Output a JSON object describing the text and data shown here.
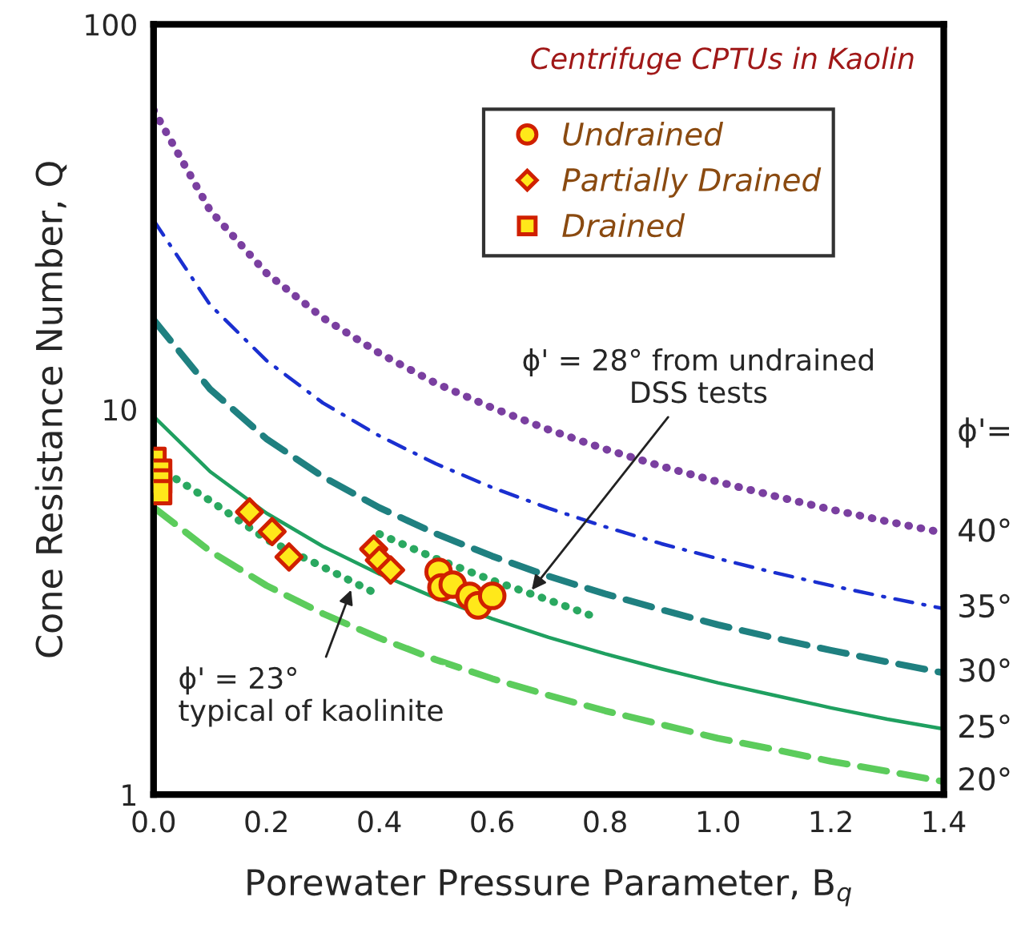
{
  "chart_data": {
    "type": "scatter",
    "xlabel": "Porewater Pressure Parameter, B$_{q}$",
    "ylabel": "Cone Resistance Number, Q",
    "legend_title": "Centrifuge CPTUs in Kaolin",
    "log": "y",
    "xlim": [
      0,
      1.4
    ],
    "ylim": [
      1,
      100
    ],
    "xticks": [
      {
        "value": 0,
        "label": "0.0"
      },
      {
        "value": 0.2,
        "label": "0.2"
      },
      {
        "value": 0.4,
        "label": "0.4"
      },
      {
        "value": 0.6,
        "label": "0.6"
      },
      {
        "value": 0.8,
        "label": "0.8"
      },
      {
        "value": 1.0,
        "label": "1.0"
      },
      {
        "value": 1.2,
        "label": "1.2"
      },
      {
        "value": 1.4,
        "label": "1.4"
      }
    ],
    "yticks": [
      1,
      10,
      100
    ],
    "grid": false,
    "legend": "top right",
    "series": [
      {
        "type": "line",
        "line_style": "dotted",
        "color": "#7a3fa0",
        "x": [
          0,
          0.1,
          0.2,
          0.3,
          0.4,
          0.5,
          0.6,
          0.7,
          0.8,
          0.9,
          1.0,
          1.1,
          1.2,
          1.3,
          1.4
        ],
        "values": [
          60,
          32.9,
          22.6,
          17.3,
          14.0,
          11.7,
          10.1,
          8.86,
          7.89,
          7.12,
          6.49,
          5.96,
          5.5,
          5.12,
          4.78
        ]
      },
      {
        "type": "line",
        "line_style": "dashdot",
        "color": "#1a2fd0",
        "x": [
          0,
          0.1,
          0.2,
          0.3,
          0.4,
          0.5,
          0.6,
          0.7,
          0.8,
          0.9,
          1.0,
          1.1,
          1.2,
          1.3,
          1.4
        ],
        "values": [
          31,
          18.7,
          13.4,
          10.4,
          8.54,
          7.23,
          6.27,
          5.54,
          4.96,
          4.48,
          4.1,
          3.77,
          3.49,
          3.25,
          3.04
        ]
      },
      {
        "type": "line",
        "line_style": "dashed",
        "color": "#1f8080",
        "x": [
          0,
          0.1,
          0.2,
          0.3,
          0.4,
          0.5,
          0.6,
          0.7,
          0.8,
          0.9,
          1.0,
          1.1,
          1.2,
          1.3,
          1.4
        ],
        "values": [
          17.1,
          11.3,
          8.39,
          6.69,
          5.56,
          4.76,
          4.16,
          3.69,
          3.32,
          3.02,
          2.76,
          2.55,
          2.37,
          2.21,
          2.07
        ]
      },
      {
        "type": "line",
        "line_style": "solid",
        "color": "#1fa060",
        "x": [
          0,
          0.1,
          0.2,
          0.3,
          0.4,
          0.5,
          0.6,
          0.7,
          0.8,
          0.9,
          1.0,
          1.1,
          1.2,
          1.3,
          1.4
        ],
        "values": [
          9.6,
          6.9,
          5.38,
          4.41,
          3.74,
          3.24,
          2.86,
          2.56,
          2.32,
          2.12,
          1.95,
          1.81,
          1.68,
          1.57,
          1.48
        ]
      },
      {
        "type": "line",
        "line_style": "dashed",
        "color": "#5ccc5c",
        "x": [
          0,
          0.1,
          0.2,
          0.3,
          0.4,
          0.5,
          0.6,
          0.7,
          0.8,
          0.9,
          1.0,
          1.1,
          1.2,
          1.3,
          1.4
        ],
        "values": [
          5.57,
          4.29,
          3.49,
          2.95,
          2.55,
          2.24,
          2.0,
          1.81,
          1.65,
          1.52,
          1.4,
          1.31,
          1.22,
          1.15,
          1.08
        ]
      },
      {
        "type": "line",
        "line_style": "dotted",
        "color": "#2aa860",
        "x": [
          0.04,
          0.1,
          0.2,
          0.3,
          0.39
        ],
        "values": [
          6.6,
          5.8,
          4.6,
          3.9,
          3.35
        ]
      },
      {
        "type": "line",
        "line_style": "dotted",
        "color": "#2aa860",
        "x": [
          0.4,
          0.5,
          0.6,
          0.7,
          0.78
        ],
        "values": [
          4.75,
          4.1,
          3.6,
          3.2,
          2.9
        ]
      },
      {
        "name": "Undrained",
        "marker": "circle",
        "color": "#ffe81a",
        "x": [
          0.505,
          0.51,
          0.53,
          0.56,
          0.575,
          0.6
        ],
        "values": [
          3.79,
          3.45,
          3.51,
          3.28,
          3.1,
          3.28
        ]
      },
      {
        "name": "Partially Drained",
        "marker": "diamond",
        "color": "#ffe81a",
        "x": [
          0.17,
          0.21,
          0.24,
          0.39,
          0.4,
          0.42
        ],
        "values": [
          5.42,
          4.82,
          4.14,
          4.34,
          4.06,
          3.83
        ]
      },
      {
        "name": "Drained",
        "marker": "square",
        "color": "#ffe81a",
        "x": [
          0.0,
          0.01,
          0.01,
          0.01
        ],
        "values": [
          7.4,
          6.9,
          6.5,
          6.1
        ]
      }
    ],
    "annotations": [
      {
        "text": "ϕ' = 28° from undrained\nDSS tests",
        "x": 0.67,
        "y": 3.4
      },
      {
        "text": "ϕ' = 23°\ntypical of kaolinite",
        "x": 0.35,
        "y": 3.4
      },
      "ϕ'=",
      {
        "text": "40°",
        "x": 1.4,
        "y": 4.78
      },
      {
        "text": "35°",
        "x": 1.4,
        "y": 3.04
      },
      {
        "text": "30°",
        "x": 1.4,
        "y": 2.07
      },
      {
        "text": "25°",
        "x": 1.4,
        "y": 1.48
      },
      {
        "text": "20°",
        "x": 1.4,
        "y": 1.08
      }
    ]
  }
}
